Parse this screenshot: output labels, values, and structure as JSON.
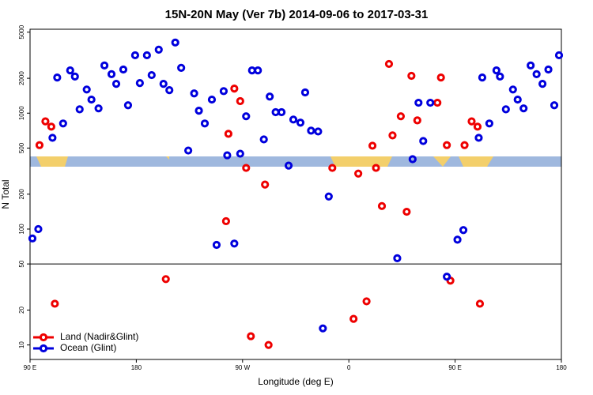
{
  "chart_data": {
    "type": "scatter",
    "title": "15N-20N May (Ver 7b)   2014-09-06 to 2017-03-31",
    "x_label": "Longitude (deg E)",
    "y_label": "N Total",
    "xlim": [
      90,
      540
    ],
    "xticks": [
      {
        "value": 90,
        "label": "90 E"
      },
      {
        "value": 180,
        "label": "180"
      },
      {
        "value": 270,
        "label": "90 W"
      },
      {
        "value": 360,
        "label": "0"
      },
      {
        "value": 450,
        "label": "90 E"
      },
      {
        "value": 540,
        "label": "180"
      }
    ],
    "ylim": [
      7.5,
      5300
    ],
    "yticks": [
      10,
      20,
      50,
      100,
      200,
      500,
      1000,
      2000,
      5000
    ],
    "log_y": true,
    "hline": 50,
    "legend": "lower left",
    "series": [
      {
        "name": "Land (Nadir&Glint)",
        "color": "#ee0000",
        "x": [
          98,
          103,
          108,
          111,
          205,
          258,
          256,
          263,
          268,
          273,
          277,
          289,
          292,
          346,
          364,
          368,
          375,
          380,
          383,
          388,
          394,
          397,
          404,
          409,
          413,
          418,
          435,
          438,
          443,
          446,
          458,
          464,
          469,
          471
        ],
        "values": [
          530,
          850,
          765,
          22.7,
          37,
          664,
          117,
          1630,
          1270,
          337,
          11.9,
          242,
          10,
          337,
          16.8,
          301,
          23.8,
          524,
          337,
          158,
          2660,
          643,
          940,
          141,
          2100,
          867,
          1230,
          2030,
          530,
          35.9,
          530,
          850,
          765,
          22.7
        ]
      },
      {
        "name": "Ocean (Glint)",
        "color": "#0000dd",
        "x": [
          92,
          97,
          109,
          113,
          118,
          124,
          128,
          132,
          138,
          142,
          148,
          153,
          159,
          163,
          169,
          173,
          179,
          183,
          189,
          193,
          199,
          203,
          208,
          213,
          218,
          224,
          229,
          233,
          238,
          244,
          248,
          254,
          257,
          263,
          268,
          273,
          278,
          283,
          288,
          293,
          298,
          303,
          309,
          313,
          319,
          323,
          328,
          334,
          338,
          343,
          401,
          414,
          419,
          423,
          429,
          443,
          452,
          457,
          470,
          473,
          479,
          485,
          488,
          493,
          499,
          503,
          508,
          514,
          519,
          524,
          529,
          534,
          538
        ],
        "values": [
          83,
          100,
          613,
          2030,
          815,
          2340,
          2070,
          1080,
          1600,
          1310,
          1100,
          2580,
          2170,
          1790,
          2380,
          1170,
          3160,
          1820,
          3160,
          2130,
          3530,
          1790,
          1580,
          4070,
          2460,
          476,
          1480,
          1050,
          815,
          1310,
          73,
          1550,
          433,
          75,
          447,
          940,
          2340,
          2340,
          594,
          1390,
          1020,
          1020,
          353,
          881,
          828,
          1510,
          707,
          695,
          13.9,
          191,
          56,
          401,
          1230,
          575,
          1230,
          38.8,
          81,
          98,
          613,
          2030,
          815,
          2340,
          2070,
          1080,
          1600,
          1310,
          1100,
          2580,
          2170,
          1790,
          2380,
          1170,
          3160
        ]
      }
    ]
  }
}
